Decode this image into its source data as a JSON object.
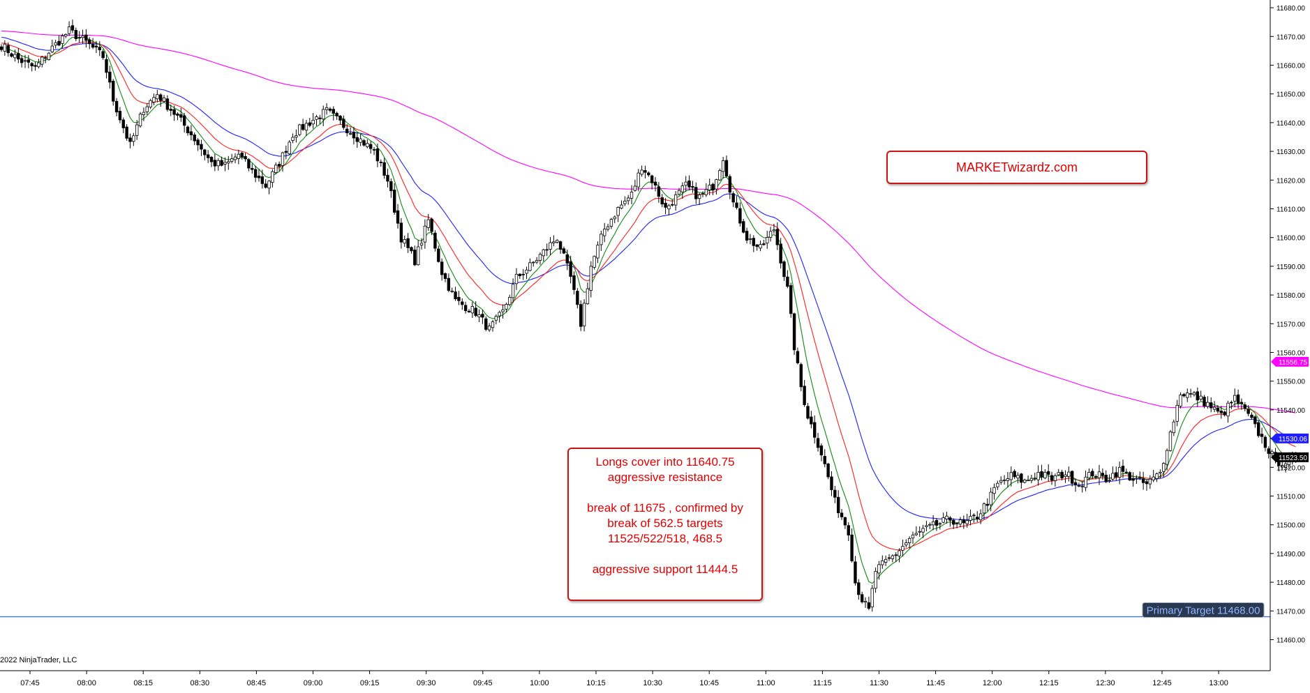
{
  "chart_data": {
    "type": "candlestick",
    "ylim": [
      11455,
      11685
    ],
    "y_ticks": [
      "11460.00",
      "11470.00",
      "11480.00",
      "11490.00",
      "11500.00",
      "11510.00",
      "11520.00",
      "11530.00",
      "11540.00",
      "11550.00",
      "11560.00",
      "11570.00",
      "11580.00",
      "11590.00",
      "11600.00",
      "11610.00",
      "11620.00",
      "11630.00",
      "11640.00",
      "11650.00",
      "11660.00",
      "11670.00",
      "11680.00"
    ],
    "x_ticks": [
      "07:45",
      "08:00",
      "08:15",
      "08:30",
      "08:45",
      "09:00",
      "09:15",
      "09:30",
      "09:45",
      "10:00",
      "10:15",
      "10:30",
      "10:45",
      "11:00",
      "11:15",
      "11:30",
      "11:45",
      "12:00",
      "12:15",
      "12:30",
      "12:45",
      "13:00"
    ],
    "price_anchors": [
      [
        0,
        11667
      ],
      [
        5,
        11662
      ],
      [
        10,
        11659
      ],
      [
        15,
        11666
      ],
      [
        20,
        11672
      ],
      [
        25,
        11668
      ],
      [
        30,
        11663
      ],
      [
        33,
        11648
      ],
      [
        38,
        11632
      ],
      [
        42,
        11645
      ],
      [
        46,
        11650
      ],
      [
        52,
        11642
      ],
      [
        56,
        11636
      ],
      [
        62,
        11626
      ],
      [
        66,
        11625
      ],
      [
        70,
        11629
      ],
      [
        74,
        11623
      ],
      [
        78,
        11618
      ],
      [
        82,
        11626
      ],
      [
        86,
        11636
      ],
      [
        92,
        11641
      ],
      [
        96,
        11644
      ],
      [
        100,
        11640
      ],
      [
        104,
        11636
      ],
      [
        110,
        11630
      ],
      [
        114,
        11620
      ],
      [
        118,
        11600
      ],
      [
        122,
        11592
      ],
      [
        126,
        11606
      ],
      [
        130,
        11588
      ],
      [
        134,
        11578
      ],
      [
        140,
        11574
      ],
      [
        144,
        11568
      ],
      [
        148,
        11574
      ],
      [
        152,
        11586
      ],
      [
        156,
        11590
      ],
      [
        160,
        11595
      ],
      [
        164,
        11600
      ],
      [
        168,
        11586
      ],
      [
        171,
        11570
      ],
      [
        174,
        11590
      ],
      [
        178,
        11603
      ],
      [
        182,
        11610
      ],
      [
        186,
        11615
      ],
      [
        189,
        11625
      ],
      [
        192,
        11620
      ],
      [
        196,
        11610
      ],
      [
        202,
        11618
      ],
      [
        206,
        11614
      ],
      [
        210,
        11618
      ],
      [
        213,
        11628
      ],
      [
        216,
        11612
      ],
      [
        220,
        11600
      ],
      [
        224,
        11596
      ],
      [
        228,
        11603
      ],
      [
        232,
        11582
      ],
      [
        234,
        11562
      ],
      [
        236,
        11548
      ],
      [
        238,
        11538
      ],
      [
        242,
        11525
      ],
      [
        246,
        11508
      ],
      [
        250,
        11498
      ],
      [
        252,
        11480
      ],
      [
        254,
        11474
      ],
      [
        256,
        11470
      ],
      [
        258,
        11484
      ],
      [
        260,
        11486
      ],
      [
        264,
        11490
      ],
      [
        268,
        11495
      ],
      [
        272,
        11498
      ],
      [
        276,
        11500
      ],
      [
        280,
        11502
      ],
      [
        284,
        11500
      ],
      [
        288,
        11503
      ],
      [
        291,
        11508
      ],
      [
        294,
        11514
      ],
      [
        298,
        11517
      ],
      [
        302,
        11515
      ],
      [
        306,
        11518
      ],
      [
        310,
        11516
      ],
      [
        314,
        11518
      ],
      [
        318,
        11514
      ],
      [
        322,
        11518
      ],
      [
        326,
        11516
      ],
      [
        330,
        11519
      ],
      [
        334,
        11516
      ],
      [
        338,
        11514
      ],
      [
        342,
        11518
      ],
      [
        345,
        11532
      ],
      [
        348,
        11546
      ],
      [
        352,
        11545
      ],
      [
        356,
        11542
      ],
      [
        360,
        11538
      ],
      [
        364,
        11544
      ],
      [
        368,
        11538
      ],
      [
        372,
        11530
      ],
      [
        376,
        11522
      ],
      [
        380,
        11522
      ],
      [
        382,
        11522
      ]
    ],
    "series": [
      {
        "name": "",
        "color": "#ff00ff"
      },
      {
        "name": "",
        "color": "#1e1eff"
      },
      {
        "name": "",
        "color": "#ff1e1e"
      },
      {
        "name": "",
        "color": "#118811"
      }
    ],
    "price_labels": [
      {
        "value": "11556.75",
        "color": "#ff00ff"
      },
      {
        "value": "11530.06",
        "color": "#1e1eff"
      },
      {
        "value": "11523.50",
        "color": "#000000"
      }
    ],
    "target_line": {
      "value": 11468,
      "color": "#4477cc"
    }
  },
  "annotations": {
    "brand": "MARKETwizardz.com",
    "note_lines": [
      "Longs cover into 11640.75",
      "aggressive resistance",
      "",
      "break of 11675 , confirmed by",
      "break of 562.5 targets",
      "11525/522/518, 468.5",
      "",
      "aggressive support 11444.5"
    ],
    "target_label": "Primary Target 11468.00"
  },
  "footer": {
    "copyright": "2022 NinjaTrader, LLC"
  }
}
